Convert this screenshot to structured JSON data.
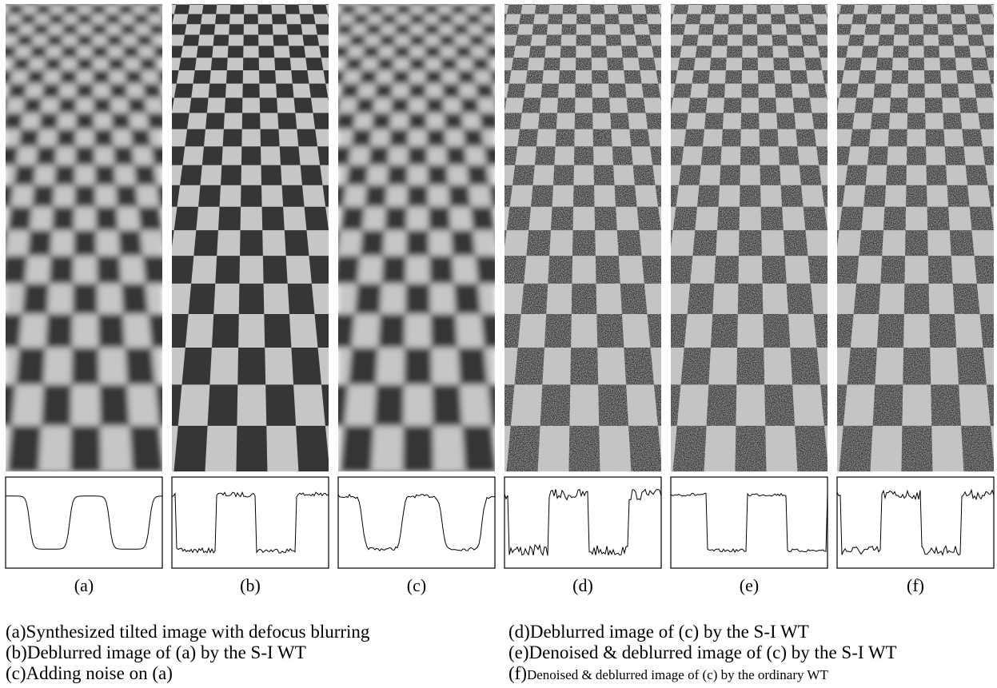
{
  "panels": [
    {
      "label": "(a)"
    },
    {
      "label": "(b)"
    },
    {
      "label": "(c)"
    },
    {
      "label": "(d)"
    },
    {
      "label": "(e)"
    },
    {
      "label": "(f)"
    }
  ],
  "captions": [
    {
      "tag": "(a)",
      "text": "Synthesized tilted image with defocus blurring"
    },
    {
      "tag": "(b)",
      "text": "Deblurred image of (a) by the S-I WT"
    },
    {
      "tag": "(c)",
      "text": "Adding noise on (a)"
    },
    {
      "tag": "(d)",
      "text": "Deblurred image of (c) by the S-I WT"
    },
    {
      "tag": "(e)",
      "text": "Denoised & deblurred image of (c) by the S-I WT"
    },
    {
      "tag": "(f)",
      "text": "Denoised & deblurred image of (c) by the ordinary WT"
    }
  ]
}
